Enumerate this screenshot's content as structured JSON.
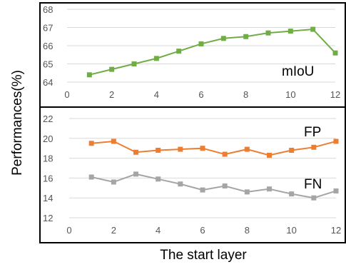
{
  "figure": {
    "ylabel": "Performances(%)",
    "xlabel": "The start layer"
  },
  "chart_data": [
    {
      "type": "line",
      "x": [
        1,
        2,
        3,
        4,
        5,
        6,
        7,
        8,
        9,
        10,
        11,
        12
      ],
      "xlim": [
        0,
        12
      ],
      "xticks": [
        0,
        2,
        4,
        6,
        8,
        10,
        12
      ],
      "ylim": [
        64,
        68
      ],
      "yticks": [
        64,
        65,
        66,
        67,
        68
      ],
      "grid": true,
      "series": [
        {
          "name": "mIoU",
          "color": "#70ad47",
          "marker": "square",
          "values": [
            64.4,
            64.7,
            65.0,
            65.3,
            65.7,
            66.1,
            66.4,
            66.5,
            66.7,
            66.8,
            66.9,
            65.6
          ]
        }
      ]
    },
    {
      "type": "line",
      "x": [
        1,
        2,
        3,
        4,
        5,
        6,
        7,
        8,
        9,
        10,
        11,
        12
      ],
      "xlim": [
        0,
        12
      ],
      "xticks": [
        0,
        2,
        4,
        6,
        8,
        10,
        12
      ],
      "ylim": [
        12,
        22
      ],
      "yticks": [
        12,
        14,
        16,
        18,
        20,
        22
      ],
      "grid": true,
      "series": [
        {
          "name": "FP",
          "color": "#ed7d31",
          "marker": "square",
          "values": [
            19.5,
            19.7,
            18.6,
            18.8,
            18.9,
            19.0,
            18.4,
            18.9,
            18.3,
            18.8,
            19.1,
            19.7
          ]
        },
        {
          "name": "FN",
          "color": "#a5a5a5",
          "marker": "square",
          "values": [
            16.1,
            15.6,
            16.4,
            15.9,
            15.4,
            14.8,
            15.2,
            14.6,
            14.9,
            14.4,
            14.0,
            14.7
          ]
        }
      ]
    }
  ]
}
